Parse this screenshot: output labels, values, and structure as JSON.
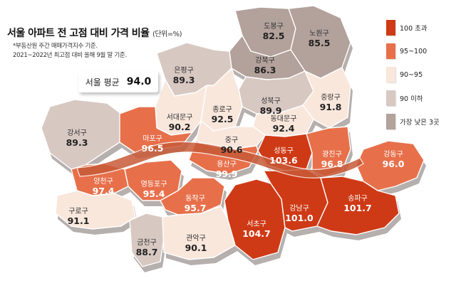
{
  "title": "서울 아파트 전 고점 대비 가격 비율",
  "unit": "(단위=%)",
  "notes": [
    "*부동산원 주간 매매가격지수 기준.",
    "2021~2022년 최고점 대비 올해 9월 말 기준."
  ],
  "average": {
    "label": "서울 평균",
    "value": "94.0"
  },
  "legend": [
    {
      "label": "100 초과",
      "color": "#cf3a16"
    },
    {
      "label": "95~100",
      "color": "#e7704b"
    },
    {
      "label": "90~95",
      "color": "#f9e7dc"
    },
    {
      "label": "90 이하",
      "color": "#d8c8c2"
    },
    {
      "label": "가장 낮은 3곳",
      "color": "#b3a19b"
    }
  ],
  "districts": [
    {
      "id": "dobong",
      "name": "도봉구",
      "value": "82.5",
      "cat": 4
    },
    {
      "id": "nowon",
      "name": "노원구",
      "value": "85.5",
      "cat": 4
    },
    {
      "id": "gangbuk",
      "name": "강북구",
      "value": "86.3",
      "cat": 4
    },
    {
      "id": "eunpyeong",
      "name": "은평구",
      "value": "89.3",
      "cat": 3
    },
    {
      "id": "seongbuk",
      "name": "성북구",
      "value": "89.9",
      "cat": 3
    },
    {
      "id": "jungnang",
      "name": "중랑구",
      "value": "91.8",
      "cat": 2
    },
    {
      "id": "jongno",
      "name": "종로구",
      "value": "92.5",
      "cat": 2
    },
    {
      "id": "dongdaemun",
      "name": "동대문구",
      "value": "92.4",
      "cat": 2
    },
    {
      "id": "seodaemun",
      "name": "서대문구",
      "value": "90.2",
      "cat": 2
    },
    {
      "id": "gangseo",
      "name": "강서구",
      "value": "89.3",
      "cat": 3
    },
    {
      "id": "mapo",
      "name": "마포구",
      "value": "96.5",
      "cat": 1
    },
    {
      "id": "jung",
      "name": "중구",
      "value": "90.6",
      "cat": 2
    },
    {
      "id": "seongdong",
      "name": "성동구",
      "value": "103.6",
      "cat": 0
    },
    {
      "id": "gwangjin",
      "name": "광진구",
      "value": "96.8",
      "cat": 1
    },
    {
      "id": "gangdong",
      "name": "강동구",
      "value": "96.0",
      "cat": 1
    },
    {
      "id": "yongsan",
      "name": "용산구",
      "value": "99.9",
      "cat": 1
    },
    {
      "id": "yangcheon",
      "name": "양천구",
      "value": "97.4",
      "cat": 1
    },
    {
      "id": "yeongdeungpo",
      "name": "영등포구",
      "value": "95.4",
      "cat": 1
    },
    {
      "id": "dongjak",
      "name": "동작구",
      "value": "95.7",
      "cat": 1
    },
    {
      "id": "guro",
      "name": "구로구",
      "value": "91.1",
      "cat": 2
    },
    {
      "id": "seocho",
      "name": "서초구",
      "value": "104.7",
      "cat": 0
    },
    {
      "id": "gangnam",
      "name": "강남구",
      "value": "101.0",
      "cat": 0
    },
    {
      "id": "songpa",
      "name": "송파구",
      "value": "101.7",
      "cat": 0
    },
    {
      "id": "geumcheon",
      "name": "금천구",
      "value": "88.7",
      "cat": 3
    },
    {
      "id": "gwanak",
      "name": "관악구",
      "value": "90.1",
      "cat": 2
    }
  ]
}
